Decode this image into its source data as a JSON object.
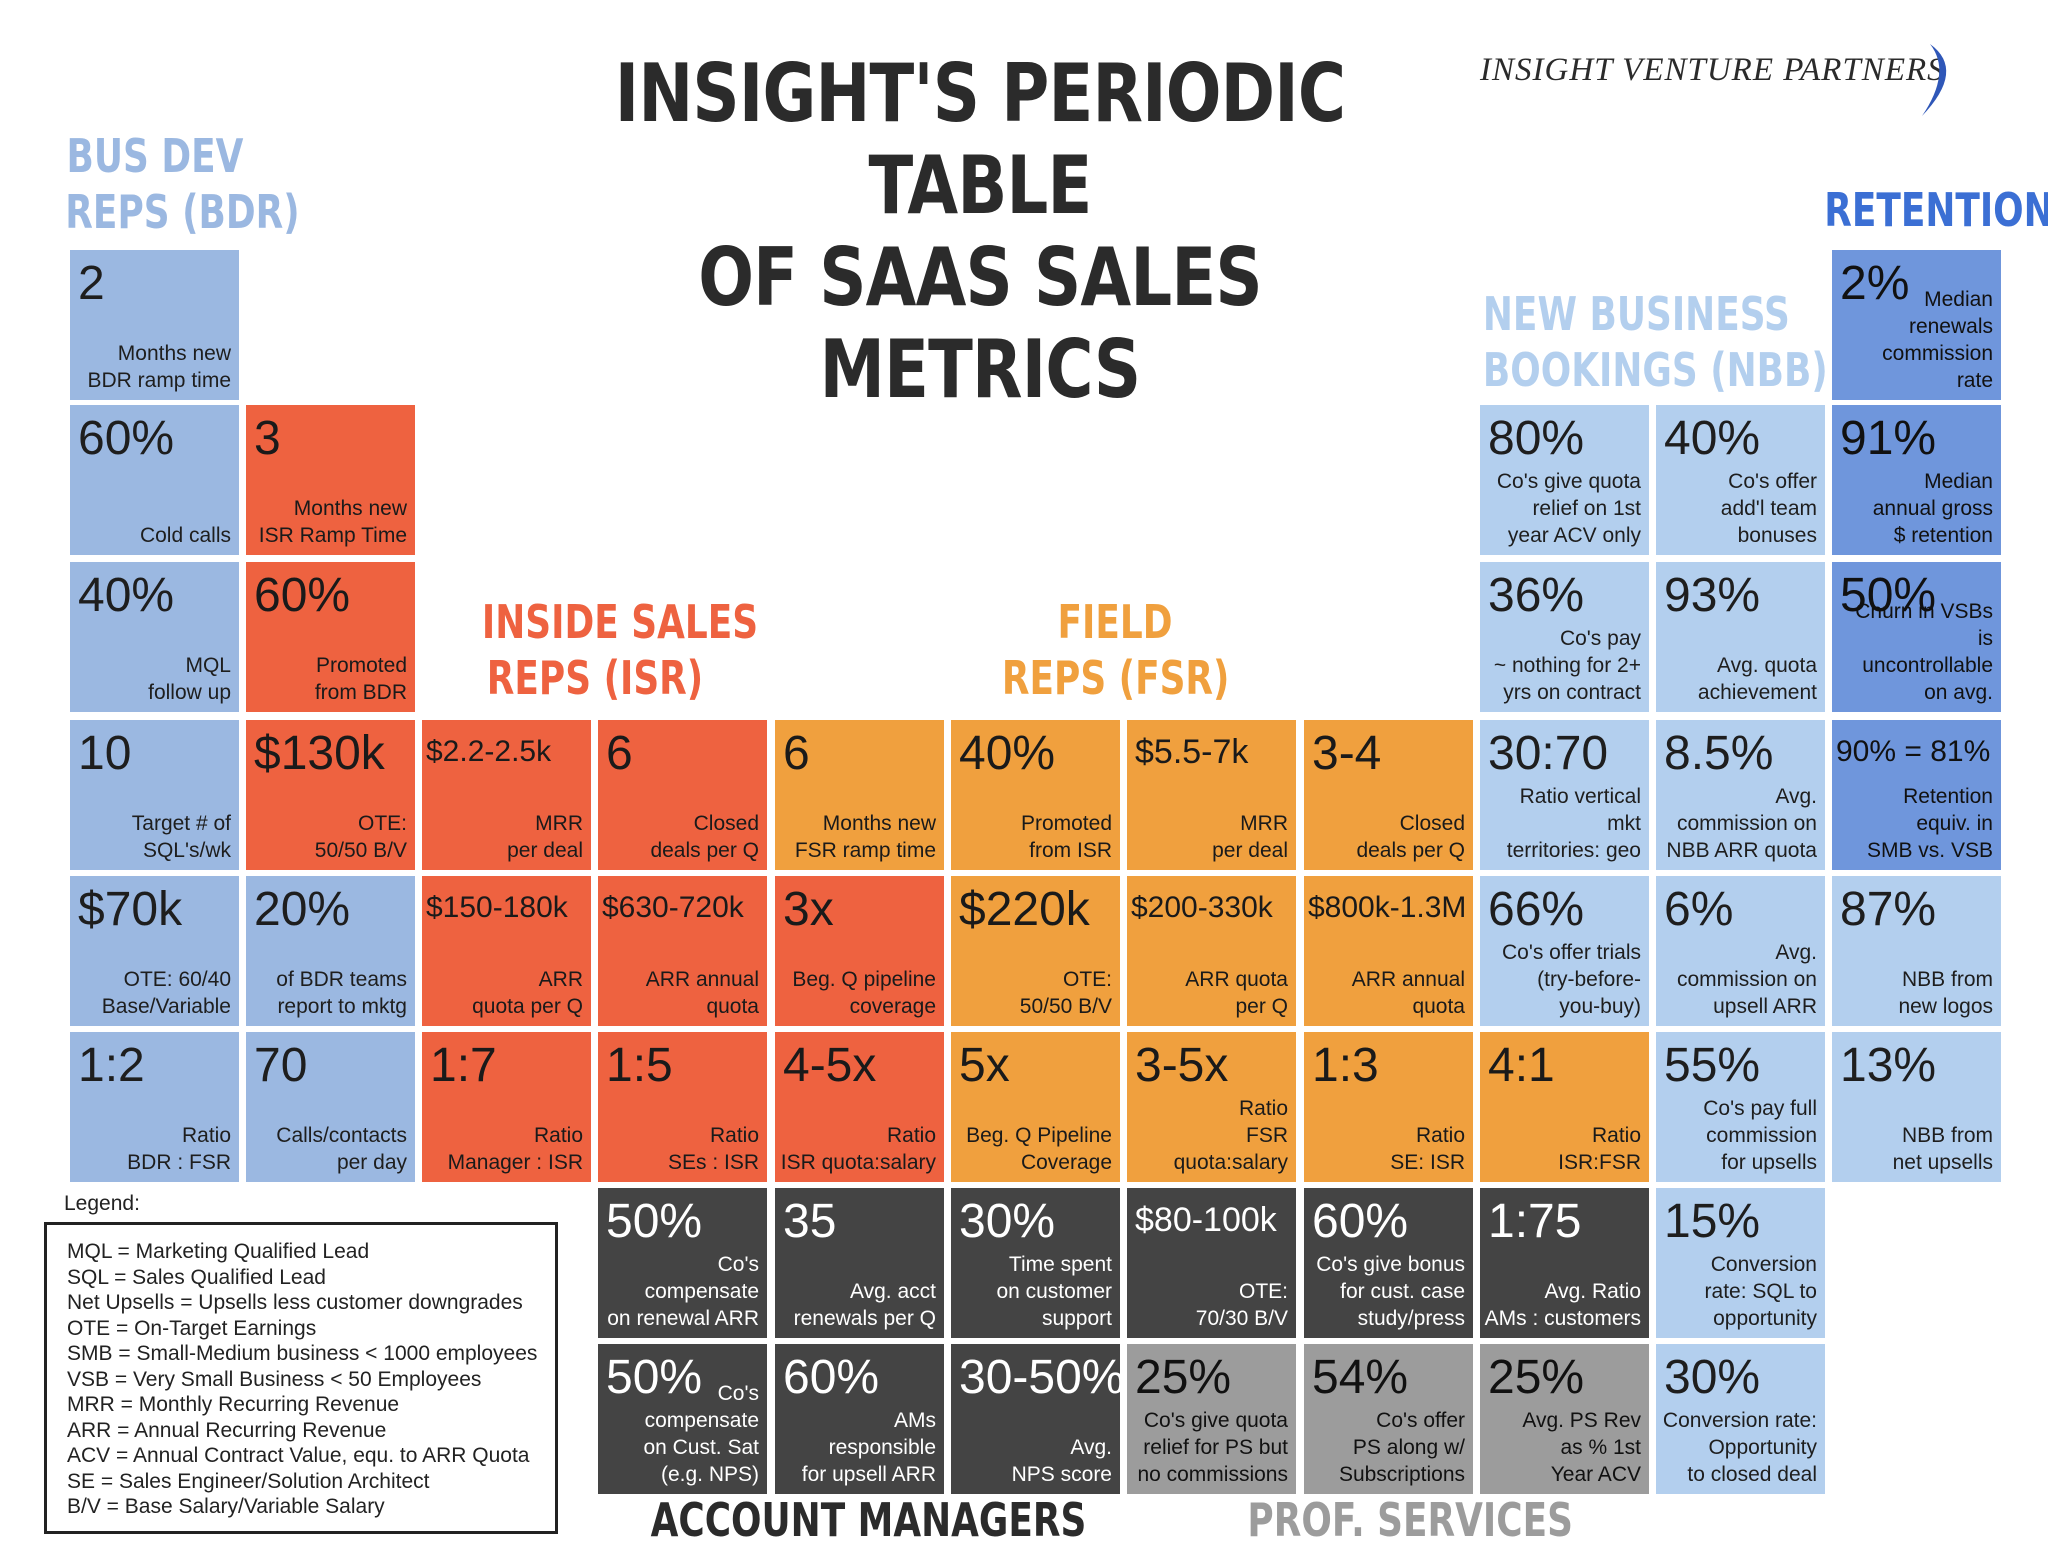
{
  "title": {
    "line1": "INSIGHT'S PERIODIC TABLE",
    "line2": "OF SAAS SALES METRICS"
  },
  "logo": {
    "text": "INSIGHT VENTURE PARTNERS"
  },
  "colors": {
    "bdr": "#9bb8e1",
    "retention": "#6f96dc",
    "nbb": "#b3cfee",
    "isr": "#ee6240",
    "fsr": "#f0a03e",
    "am": "#444444",
    "ps": "#9c9c9c"
  },
  "groups": {
    "bdr": {
      "line1": "BUS DEV",
      "line2": "REPS (BDR)"
    },
    "isr": {
      "line1": "INSIDE SALES",
      "line2": "REPS (ISR)"
    },
    "fsr": {
      "line1": "FIELD",
      "line2": "REPS (FSR)"
    },
    "nbb": {
      "line1": "NEW BUSINESS",
      "line2": "BOOKINGS (NBB)"
    },
    "retention": {
      "line1": "RETENTION"
    },
    "am": {
      "line1": "ACCOUNT MANAGERS"
    },
    "ps": {
      "line1": "PROF. SERVICES"
    }
  },
  "cells": [
    {
      "id": "bdr-ramp",
      "group": "bdr",
      "value": "2",
      "desc": "Months new\nBDR ramp time"
    },
    {
      "id": "bdr-cold-calls",
      "group": "bdr",
      "value": "60%",
      "desc": "Cold calls"
    },
    {
      "id": "bdr-mql-followup",
      "group": "bdr",
      "value": "40%",
      "desc": "MQL\nfollow up"
    },
    {
      "id": "bdr-target-sqls",
      "group": "bdr",
      "value": "10",
      "desc": "Target # of\nSQL's/wk"
    },
    {
      "id": "bdr-ote",
      "group": "bdr",
      "value": "$70k",
      "desc": "OTE: 60/40\nBase/Variable"
    },
    {
      "id": "bdr-ratio-fsr",
      "group": "bdr",
      "value": "1:2",
      "desc": "Ratio\nBDR : FSR"
    },
    {
      "id": "bdr-report-mktg",
      "group": "bdr",
      "value": "20%",
      "desc": "of BDR teams\nreport to mktg"
    },
    {
      "id": "bdr-calls-per-day",
      "group": "bdr",
      "value": "70",
      "desc": "Calls/contacts\nper day"
    },
    {
      "id": "isr-ramp",
      "group": "isr",
      "value": "3",
      "desc": "Months new\nISR Ramp Time"
    },
    {
      "id": "isr-promoted-bdr",
      "group": "isr",
      "value": "60%",
      "desc": "Promoted\nfrom BDR"
    },
    {
      "id": "isr-ote",
      "group": "isr",
      "value": "$130k",
      "desc": "OTE:\n50/50 B/V"
    },
    {
      "id": "isr-mrr-deal",
      "group": "isr",
      "value": "$2.2-2.5k",
      "desc": "MRR\nper deal"
    },
    {
      "id": "isr-closed-deals",
      "group": "isr",
      "value": "6",
      "desc": "Closed\ndeals per Q"
    },
    {
      "id": "isr-arr-quota-q",
      "group": "isr",
      "value": "$150-180k",
      "desc": "ARR\nquota per Q"
    },
    {
      "id": "isr-arr-annual",
      "group": "isr",
      "value": "$630-720k",
      "desc": "ARR annual\nquota"
    },
    {
      "id": "isr-pipeline",
      "group": "isr",
      "value": "3x",
      "desc": "Beg. Q pipeline\ncoverage"
    },
    {
      "id": "isr-ratio-mgr",
      "group": "isr",
      "value": "1:7",
      "desc": "Ratio\nManager : ISR"
    },
    {
      "id": "isr-ratio-ses",
      "group": "isr",
      "value": "1:5",
      "desc": "Ratio\nSEs : ISR"
    },
    {
      "id": "isr-quota-salary",
      "group": "isr",
      "value": "4-5x",
      "desc": "Ratio\nISR quota:salary"
    },
    {
      "id": "fsr-ramp",
      "group": "fsr",
      "value": "6",
      "desc": "Months new\nFSR ramp time"
    },
    {
      "id": "fsr-promoted-isr",
      "group": "fsr",
      "value": "40%",
      "desc": "Promoted\nfrom ISR"
    },
    {
      "id": "fsr-mrr-deal",
      "group": "fsr",
      "value": "$5.5-7k",
      "desc": "MRR\nper deal"
    },
    {
      "id": "fsr-closed-deals",
      "group": "fsr",
      "value": "3-4",
      "desc": "Closed\ndeals per Q"
    },
    {
      "id": "fsr-ote",
      "group": "fsr",
      "value": "$220k",
      "desc": "OTE:\n50/50 B/V"
    },
    {
      "id": "fsr-arr-quota-q",
      "group": "fsr",
      "value": "$200-330k",
      "desc": "ARR quota\nper Q"
    },
    {
      "id": "fsr-arr-annual",
      "group": "fsr",
      "value": "$800k-1.3M",
      "desc": "ARR annual\nquota"
    },
    {
      "id": "fsr-pipeline",
      "group": "fsr",
      "value": "5x",
      "desc": "Beg. Q Pipeline\nCoverage"
    },
    {
      "id": "fsr-quota-salary",
      "group": "fsr",
      "value": "3-5x",
      "desc": "Ratio\nFSR quota:salary"
    },
    {
      "id": "fsr-ratio-se",
      "group": "fsr",
      "value": "1:3",
      "desc": "Ratio\nSE: ISR"
    },
    {
      "id": "fsr-ratio-isr",
      "group": "fsr",
      "value": "4:1",
      "desc": "Ratio\nISR:FSR"
    },
    {
      "id": "nbb-quota-relief",
      "group": "nbb",
      "value": "80%",
      "desc": "Co's give quota\nrelief on 1st\nyear ACV only"
    },
    {
      "id": "nbb-team-bonus",
      "group": "nbb",
      "value": "40%",
      "desc": "Co's offer\nadd'l team\nbonuses"
    },
    {
      "id": "nbb-pay-nothing",
      "group": "nbb",
      "value": "36%",
      "desc": "Co's pay\n~ nothing for 2+\nyrs on contract"
    },
    {
      "id": "nbb-quota-achieve",
      "group": "nbb",
      "value": "93%",
      "desc": "Avg. quota\nachievement"
    },
    {
      "id": "nbb-vertical",
      "group": "nbb",
      "value": "30:70",
      "desc": "Ratio vertical mkt\nterritories: geo"
    },
    {
      "id": "nbb-commission",
      "group": "nbb",
      "value": "8.5%",
      "desc": "Avg.\ncommission on\nNBB ARR quota"
    },
    {
      "id": "nbb-trials",
      "group": "nbb",
      "value": "66%",
      "desc": "Co's offer trials\n(try-before-\nyou-buy)"
    },
    {
      "id": "nbb-upsell-comm",
      "group": "nbb",
      "value": "6%",
      "desc": "Avg.\ncommission on\nupsell ARR"
    },
    {
      "id": "nbb-full-comm",
      "group": "nbb",
      "value": "55%",
      "desc": "Co's pay full\ncommission\nfor upsells"
    },
    {
      "id": "nbb-conv-sql",
      "group": "nbb",
      "value": "15%",
      "desc": "Conversion\nrate: SQL to\nopportunity"
    },
    {
      "id": "nbb-conv-closed",
      "group": "nbb",
      "value": "30%",
      "desc": "Conversion rate:\nOpportunity\nto closed deal"
    },
    {
      "id": "ret-renewal-comm",
      "group": "retention",
      "value": "2%",
      "desc": "Median renewals\ncommission\nrate"
    },
    {
      "id": "ret-gross",
      "group": "retention",
      "value": "91%",
      "desc": "Median\nannual gross\n$ retention"
    },
    {
      "id": "ret-churn-vsb",
      "group": "retention",
      "value": "50%",
      "desc": "Churn in VSBs is\nuncontrollable\non avg."
    },
    {
      "id": "ret-equiv",
      "group": "retention",
      "value": "90% = 81%",
      "desc": "Retention\nequiv. in\nSMB vs. VSB"
    },
    {
      "id": "ret-new-logos",
      "group": "nbb",
      "value": "87%",
      "desc": "NBB from\nnew logos"
    },
    {
      "id": "ret-net-upsells",
      "group": "nbb",
      "value": "13%",
      "desc": "NBB from\nnet upsells"
    },
    {
      "id": "am-renewal-arr",
      "group": "am",
      "value": "50%",
      "desc": "Co's compensate\non renewal ARR"
    },
    {
      "id": "am-acct-renewals",
      "group": "am",
      "value": "35",
      "desc": "Avg. acct\nrenewals per Q"
    },
    {
      "id": "am-support-time",
      "group": "am",
      "value": "30%",
      "desc": "Time spent\non customer\nsupport"
    },
    {
      "id": "am-ote",
      "group": "am",
      "value": "$80-100k",
      "desc": "OTE:\n70/30 B/V"
    },
    {
      "id": "am-case-study",
      "group": "am",
      "value": "60%",
      "desc": "Co's give bonus\nfor cust. case\nstudy/press"
    },
    {
      "id": "am-ratio",
      "group": "am",
      "value": "1:75",
      "desc": "Avg. Ratio\nAMs : customers"
    },
    {
      "id": "am-cust-sat",
      "group": "am",
      "value": "50%",
      "desc": "Co's compensate\non Cust. Sat\n(e.g. NPS)"
    },
    {
      "id": "am-upsell-arr",
      "group": "am",
      "value": "60%",
      "desc": "AMs\nresponsible\nfor upsell ARR"
    },
    {
      "id": "am-nps",
      "group": "am",
      "value": "30-50%",
      "desc": "Avg.\nNPS score"
    },
    {
      "id": "ps-quota-relief",
      "group": "ps",
      "value": "25%",
      "desc": "Co's give quota\nrelief for PS but\nno commissions"
    },
    {
      "id": "ps-along-subs",
      "group": "ps",
      "value": "54%",
      "desc": "Co's offer\nPS along w/\nSubscriptions"
    },
    {
      "id": "ps-rev",
      "group": "ps",
      "value": "25%",
      "desc": "Avg. PS Rev\nas % 1st\nYear ACV"
    }
  ],
  "legend": {
    "title": "Legend:",
    "items": [
      "MQL = Marketing Qualified Lead",
      "SQL = Sales Qualified Lead",
      "Net Upsells = Upsells less customer downgrades",
      "OTE = On-Target Earnings",
      "SMB = Small-Medium business < 1000 employees",
      "VSB = Very Small Business < 50 Employees",
      "MRR = Monthly Recurring Revenue",
      "ARR = Annual Recurring Revenue",
      "ACV = Annual Contract Value, equ. to ARR Quota",
      "SE = Sales Engineer/Solution Architect",
      "B/V = Base Salary/Variable Salary"
    ]
  }
}
